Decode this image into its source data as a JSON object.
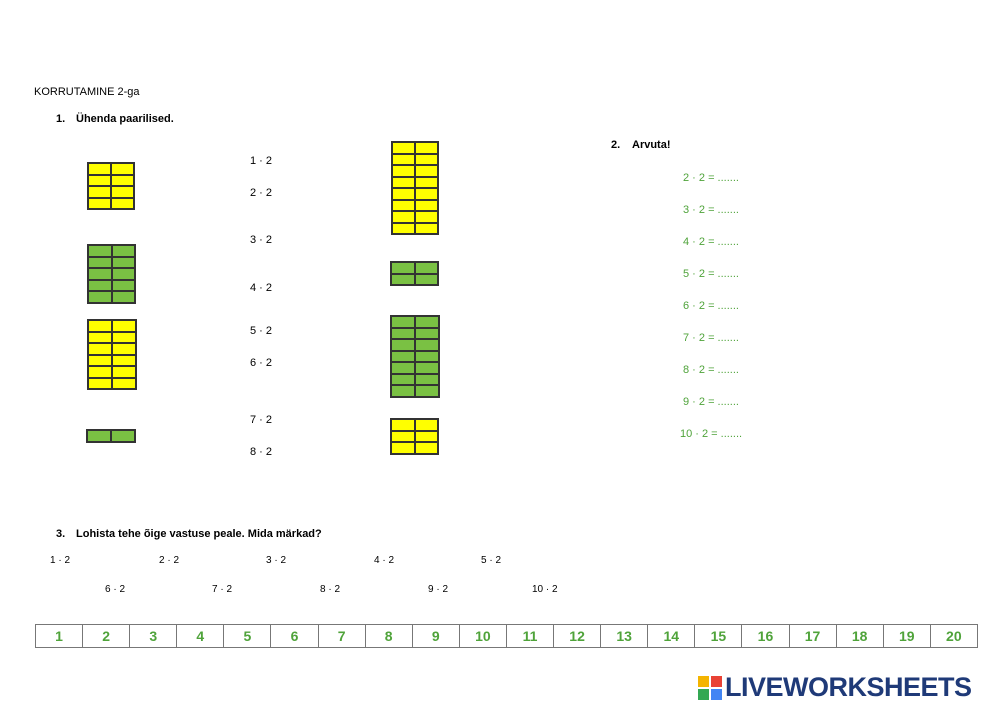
{
  "header": {
    "title": "KORRUTAMINE 2-ga"
  },
  "task1": {
    "number": "1.",
    "title": "Ühenda paarilised.",
    "expressions": [
      "1 · 2",
      "2 · 2",
      "3 · 2",
      "4 · 2",
      "5 · 2",
      "6 · 2",
      "7 · 2",
      "8 · 2"
    ]
  },
  "task2": {
    "number": "2.",
    "title": "Arvuta!",
    "items": [
      "2 · 2 = .......",
      "3 · 2 = .......",
      "4 · 2 = .......",
      "5 · 2 = .......",
      "6 · 2 = .......",
      "7 · 2 = .......",
      "8 · 2 = .......",
      "9 · 2 = .......",
      "10 · 2 = ......."
    ]
  },
  "task3": {
    "number": "3.",
    "title": "Lohista tehe õige vastuse peale. Mida märkad?",
    "drag_items": [
      "1 · 2",
      "2 · 2",
      "3 · 2",
      "4 · 2",
      "5 · 2",
      "6 · 2",
      "7 · 2",
      "8 · 2",
      "9 · 2",
      "10 · 2"
    ],
    "answers": [
      "1",
      "2",
      "3",
      "4",
      "5",
      "6",
      "7",
      "8",
      "9",
      "10",
      "11",
      "12",
      "13",
      "14",
      "15",
      "16",
      "17",
      "18",
      "19",
      "20"
    ]
  },
  "footer": {
    "logo": "LIVEWORKSHEETS"
  }
}
